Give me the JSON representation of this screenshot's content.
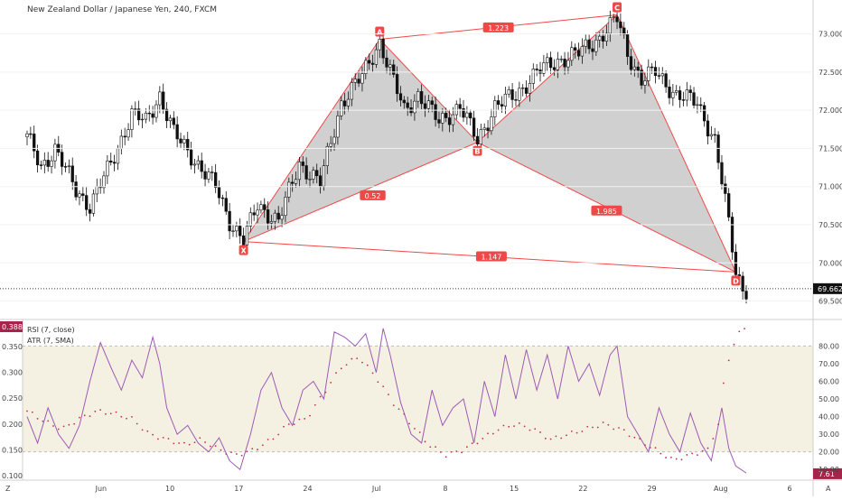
{
  "chart_data": [
    {
      "type": "candlestick",
      "title": "New Zealand Dollar / Japanese Yen, 240, FXCM",
      "ylim": [
        69.4,
        73.35
      ],
      "y_ticks": [
        "73.000",
        "72.500",
        "72.000",
        "71.500",
        "71.000",
        "70.500",
        "70.000",
        "69.500"
      ],
      "last_price": "69.662",
      "x_ticks": [
        "Jun",
        "10",
        "17",
        "24",
        "Jul",
        "8",
        "15",
        "22",
        "29",
        "Aug",
        "6"
      ],
      "price_path": [
        {
          "x": 0,
          "y": 71.65
        },
        {
          "x": 4,
          "y": 71.25
        },
        {
          "x": 8,
          "y": 71.5
        },
        {
          "x": 14,
          "y": 70.95
        },
        {
          "x": 18,
          "y": 70.75
        },
        {
          "x": 24,
          "y": 71.3
        },
        {
          "x": 30,
          "y": 71.95
        },
        {
          "x": 34,
          "y": 71.85
        },
        {
          "x": 38,
          "y": 72.2
        },
        {
          "x": 42,
          "y": 71.7
        },
        {
          "x": 48,
          "y": 71.35
        },
        {
          "x": 54,
          "y": 71.0
        },
        {
          "x": 58,
          "y": 70.55
        },
        {
          "x": 62,
          "y": 70.3
        },
        {
          "x": 66,
          "y": 70.75
        },
        {
          "x": 72,
          "y": 70.55
        },
        {
          "x": 78,
          "y": 71.3
        },
        {
          "x": 84,
          "y": 71.05
        },
        {
          "x": 90,
          "y": 72.1
        },
        {
          "x": 96,
          "y": 72.45
        },
        {
          "x": 101,
          "y": 72.9
        },
        {
          "x": 104,
          "y": 72.5
        },
        {
          "x": 108,
          "y": 72.0
        },
        {
          "x": 112,
          "y": 72.2
        },
        {
          "x": 118,
          "y": 71.85
        },
        {
          "x": 124,
          "y": 72.05
        },
        {
          "x": 129,
          "y": 71.6
        },
        {
          "x": 134,
          "y": 72.05
        },
        {
          "x": 140,
          "y": 72.2
        },
        {
          "x": 146,
          "y": 72.5
        },
        {
          "x": 152,
          "y": 72.65
        },
        {
          "x": 158,
          "y": 72.75
        },
        {
          "x": 164,
          "y": 72.95
        },
        {
          "x": 169,
          "y": 73.2
        },
        {
          "x": 172,
          "y": 72.75
        },
        {
          "x": 176,
          "y": 72.4
        },
        {
          "x": 180,
          "y": 72.5
        },
        {
          "x": 186,
          "y": 72.2
        },
        {
          "x": 192,
          "y": 72.1
        },
        {
          "x": 197,
          "y": 71.6
        },
        {
          "x": 200,
          "y": 70.8
        },
        {
          "x": 203,
          "y": 69.9
        },
        {
          "x": 205,
          "y": 69.66
        }
      ],
      "harmonic_points": [
        {
          "label": "X",
          "x": 62,
          "y": 70.28
        },
        {
          "label": "A",
          "x": 101,
          "y": 72.93
        },
        {
          "label": "B",
          "x": 129,
          "y": 71.58
        },
        {
          "label": "C",
          "x": 169,
          "y": 73.25
        },
        {
          "label": "D",
          "x": 203,
          "y": 69.88
        }
      ],
      "ratios": [
        {
          "label": "0.52",
          "x": 99,
          "y": 70.88
        },
        {
          "label": "1.223",
          "x": 135,
          "y": 73.08
        },
        {
          "label": "1.985",
          "x": 166,
          "y": 70.68
        },
        {
          "label": "1.147",
          "x": 133,
          "y": 70.08
        }
      ]
    },
    {
      "type": "line",
      "legend": [
        "RSI (7, close)",
        "ATR (7, SMA)"
      ],
      "rsi_ticks": [
        "80.00",
        "70.00",
        "60.00",
        "50.00",
        "40.00",
        "30.00",
        "20.00",
        "10.00"
      ],
      "atr_ticks": [
        "0.350",
        "0.300",
        "0.250",
        "0.200",
        "0.150",
        "0.100"
      ],
      "rsi_band": [
        20,
        80
      ],
      "atr_current": "0.388",
      "rsi_current": "7.61",
      "rsi_ylim": [
        5,
        93
      ],
      "atr_ylim": [
        0.095,
        0.395
      ],
      "rsi": [
        {
          "x": 0,
          "y": 40
        },
        {
          "x": 3,
          "y": 25
        },
        {
          "x": 6,
          "y": 45
        },
        {
          "x": 9,
          "y": 30
        },
        {
          "x": 12,
          "y": 22
        },
        {
          "x": 15,
          "y": 35
        },
        {
          "x": 18,
          "y": 60
        },
        {
          "x": 21,
          "y": 82
        },
        {
          "x": 24,
          "y": 68
        },
        {
          "x": 27,
          "y": 55
        },
        {
          "x": 30,
          "y": 72
        },
        {
          "x": 33,
          "y": 62
        },
        {
          "x": 36,
          "y": 85
        },
        {
          "x": 38,
          "y": 70
        },
        {
          "x": 40,
          "y": 45
        },
        {
          "x": 43,
          "y": 30
        },
        {
          "x": 46,
          "y": 35
        },
        {
          "x": 49,
          "y": 25
        },
        {
          "x": 52,
          "y": 20
        },
        {
          "x": 55,
          "y": 28
        },
        {
          "x": 58,
          "y": 15
        },
        {
          "x": 61,
          "y": 10
        },
        {
          "x": 64,
          "y": 30
        },
        {
          "x": 67,
          "y": 55
        },
        {
          "x": 70,
          "y": 65
        },
        {
          "x": 73,
          "y": 45
        },
        {
          "x": 76,
          "y": 35
        },
        {
          "x": 79,
          "y": 55
        },
        {
          "x": 82,
          "y": 60
        },
        {
          "x": 85,
          "y": 50
        },
        {
          "x": 88,
          "y": 88
        },
        {
          "x": 91,
          "y": 85
        },
        {
          "x": 94,
          "y": 80
        },
        {
          "x": 97,
          "y": 87
        },
        {
          "x": 100,
          "y": 65
        },
        {
          "x": 102,
          "y": 90
        },
        {
          "x": 104,
          "y": 75
        },
        {
          "x": 107,
          "y": 48
        },
        {
          "x": 110,
          "y": 30
        },
        {
          "x": 113,
          "y": 25
        },
        {
          "x": 116,
          "y": 55
        },
        {
          "x": 119,
          "y": 35
        },
        {
          "x": 122,
          "y": 45
        },
        {
          "x": 125,
          "y": 50
        },
        {
          "x": 128,
          "y": 25
        },
        {
          "x": 131,
          "y": 60
        },
        {
          "x": 134,
          "y": 40
        },
        {
          "x": 137,
          "y": 75
        },
        {
          "x": 140,
          "y": 50
        },
        {
          "x": 143,
          "y": 78
        },
        {
          "x": 146,
          "y": 55
        },
        {
          "x": 149,
          "y": 75
        },
        {
          "x": 152,
          "y": 50
        },
        {
          "x": 155,
          "y": 80
        },
        {
          "x": 158,
          "y": 60
        },
        {
          "x": 161,
          "y": 70
        },
        {
          "x": 164,
          "y": 52
        },
        {
          "x": 167,
          "y": 75
        },
        {
          "x": 169,
          "y": 80
        },
        {
          "x": 172,
          "y": 40
        },
        {
          "x": 175,
          "y": 30
        },
        {
          "x": 178,
          "y": 20
        },
        {
          "x": 181,
          "y": 45
        },
        {
          "x": 184,
          "y": 30
        },
        {
          "x": 187,
          "y": 20
        },
        {
          "x": 190,
          "y": 42
        },
        {
          "x": 193,
          "y": 25
        },
        {
          "x": 196,
          "y": 15
        },
        {
          "x": 199,
          "y": 45
        },
        {
          "x": 201,
          "y": 22
        },
        {
          "x": 203,
          "y": 12
        },
        {
          "x": 206,
          "y": 8
        }
      ],
      "atr": [
        {
          "x": 0,
          "y": 0.225
        },
        {
          "x": 5,
          "y": 0.205
        },
        {
          "x": 10,
          "y": 0.19
        },
        {
          "x": 15,
          "y": 0.21
        },
        {
          "x": 20,
          "y": 0.225
        },
        {
          "x": 25,
          "y": 0.22
        },
        {
          "x": 30,
          "y": 0.21
        },
        {
          "x": 35,
          "y": 0.18
        },
        {
          "x": 40,
          "y": 0.17
        },
        {
          "x": 45,
          "y": 0.16
        },
        {
          "x": 50,
          "y": 0.17
        },
        {
          "x": 55,
          "y": 0.15
        },
        {
          "x": 60,
          "y": 0.14
        },
        {
          "x": 65,
          "y": 0.15
        },
        {
          "x": 70,
          "y": 0.17
        },
        {
          "x": 75,
          "y": 0.2
        },
        {
          "x": 80,
          "y": 0.21
        },
        {
          "x": 85,
          "y": 0.26
        },
        {
          "x": 90,
          "y": 0.31
        },
        {
          "x": 95,
          "y": 0.33
        },
        {
          "x": 100,
          "y": 0.29
        },
        {
          "x": 105,
          "y": 0.24
        },
        {
          "x": 110,
          "y": 0.2
        },
        {
          "x": 115,
          "y": 0.16
        },
        {
          "x": 120,
          "y": 0.14
        },
        {
          "x": 125,
          "y": 0.15
        },
        {
          "x": 130,
          "y": 0.17
        },
        {
          "x": 135,
          "y": 0.19
        },
        {
          "x": 140,
          "y": 0.2
        },
        {
          "x": 145,
          "y": 0.19
        },
        {
          "x": 150,
          "y": 0.17
        },
        {
          "x": 155,
          "y": 0.18
        },
        {
          "x": 160,
          "y": 0.19
        },
        {
          "x": 165,
          "y": 0.2
        },
        {
          "x": 170,
          "y": 0.19
        },
        {
          "x": 175,
          "y": 0.17
        },
        {
          "x": 180,
          "y": 0.15
        },
        {
          "x": 185,
          "y": 0.13
        },
        {
          "x": 190,
          "y": 0.14
        },
        {
          "x": 195,
          "y": 0.15
        },
        {
          "x": 198,
          "y": 0.2
        },
        {
          "x": 200,
          "y": 0.3
        },
        {
          "x": 202,
          "y": 0.35
        },
        {
          "x": 204,
          "y": 0.375
        },
        {
          "x": 206,
          "y": 0.388
        }
      ]
    }
  ]
}
